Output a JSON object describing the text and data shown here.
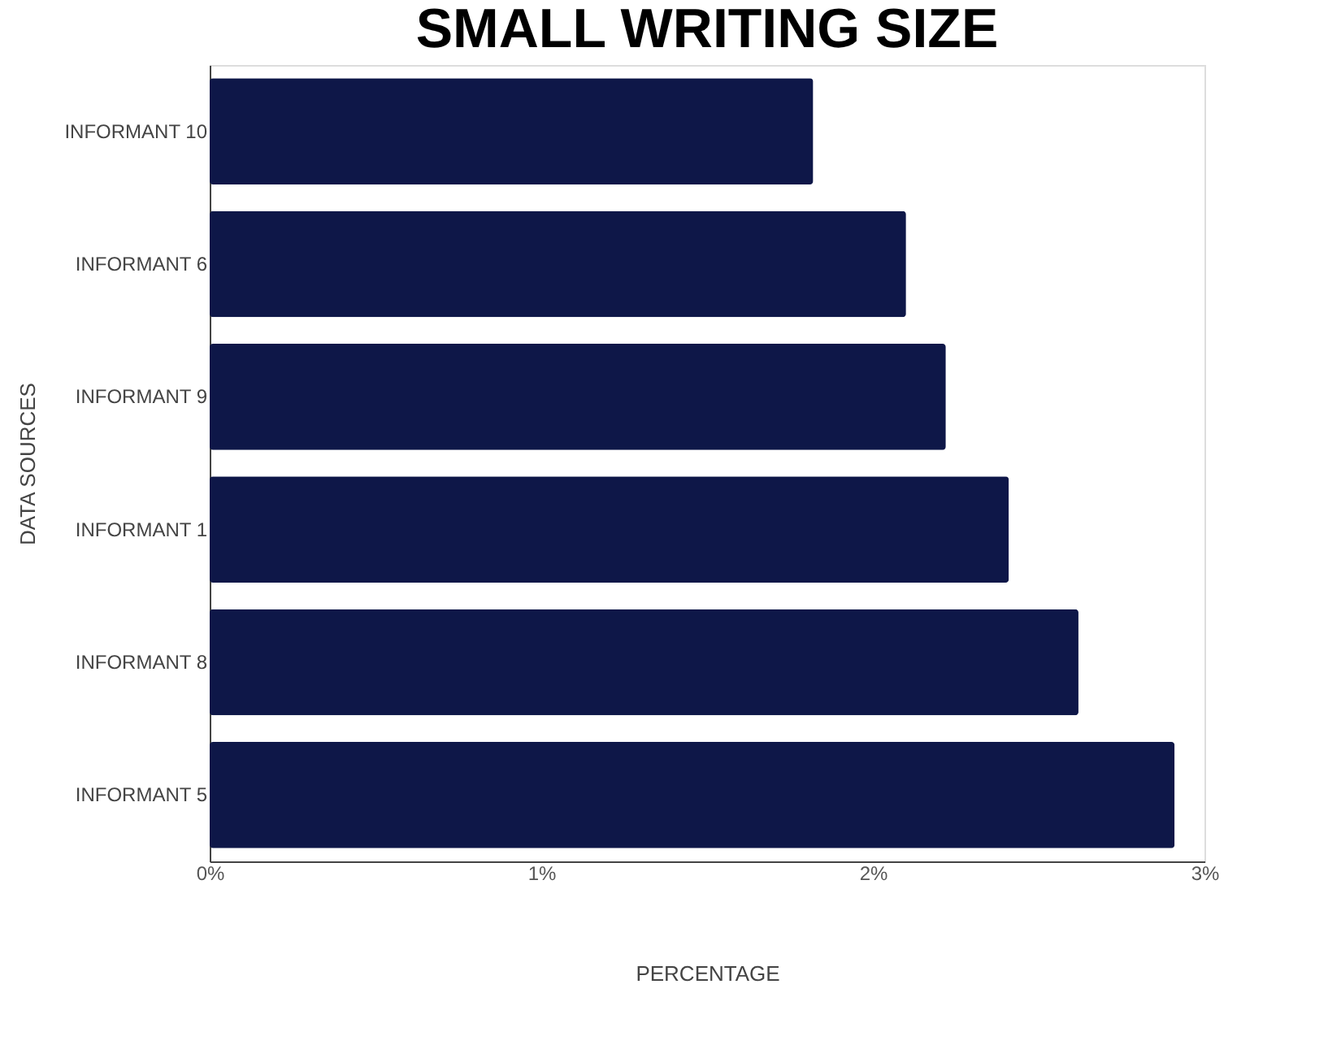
{
  "chart_data": {
    "type": "bar",
    "orientation": "horizontal",
    "title": "SMALL WRITING SIZE",
    "xlabel": "PERCENTAGE",
    "ylabel": "DATA SOURCES",
    "categories": [
      "INFORMANT 10",
      "INFORMANT 6",
      "INFORMANT 9",
      "INFORMANT 1",
      "INFORMANT 8",
      "INFORMANT 5"
    ],
    "values": [
      1.82,
      2.1,
      2.22,
      2.41,
      2.62,
      2.91
    ],
    "color": "#0e1748",
    "xlim": [
      0,
      3
    ],
    "xticks": [
      {
        "value": 0,
        "label": "0%"
      },
      {
        "value": 1,
        "label": "1%"
      },
      {
        "value": 2,
        "label": "2%"
      },
      {
        "value": 3,
        "label": "3%"
      }
    ],
    "grid": false
  }
}
